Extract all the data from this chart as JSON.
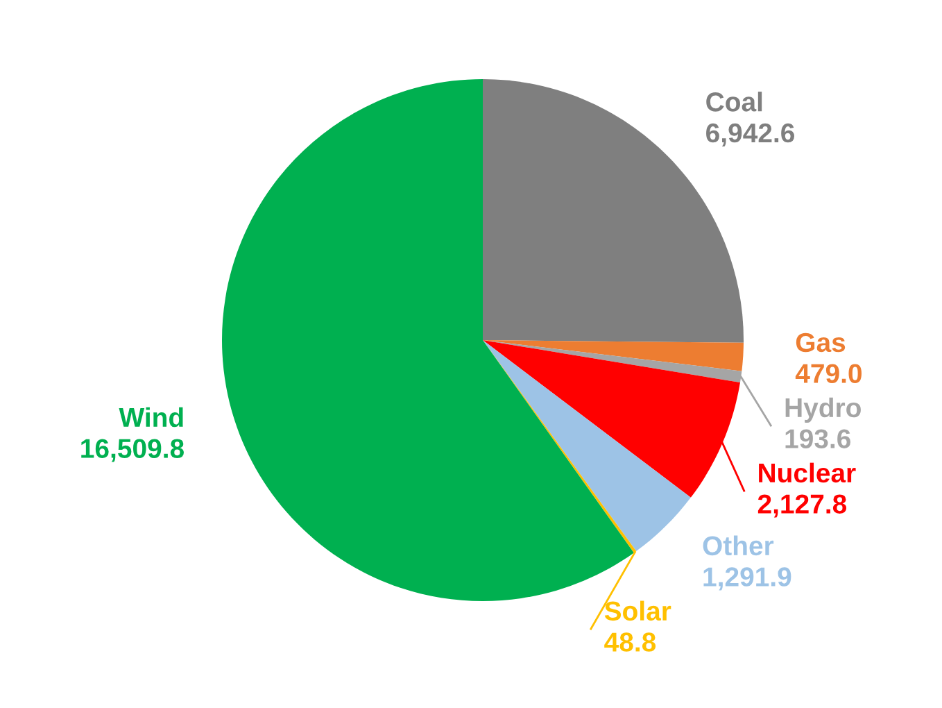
{
  "chart_data": {
    "type": "pie",
    "categories": [
      "Coal",
      "Gas",
      "Hydro",
      "Nuclear",
      "Other",
      "Solar",
      "Wind"
    ],
    "values": [
      6942.6,
      479.0,
      193.6,
      2127.8,
      1291.9,
      48.8,
      16509.8
    ],
    "colors": [
      "#7f7f7f",
      "#ed7d31",
      "#a5a5a5",
      "#ff0000",
      "#9dc3e6",
      "#ffc000",
      "#00b050"
    ],
    "value_labels": [
      "6,942.6",
      "479.0",
      "193.6",
      "2,127.8",
      "1,291.9",
      "48.8",
      "16,509.8"
    ],
    "legend": false
  }
}
